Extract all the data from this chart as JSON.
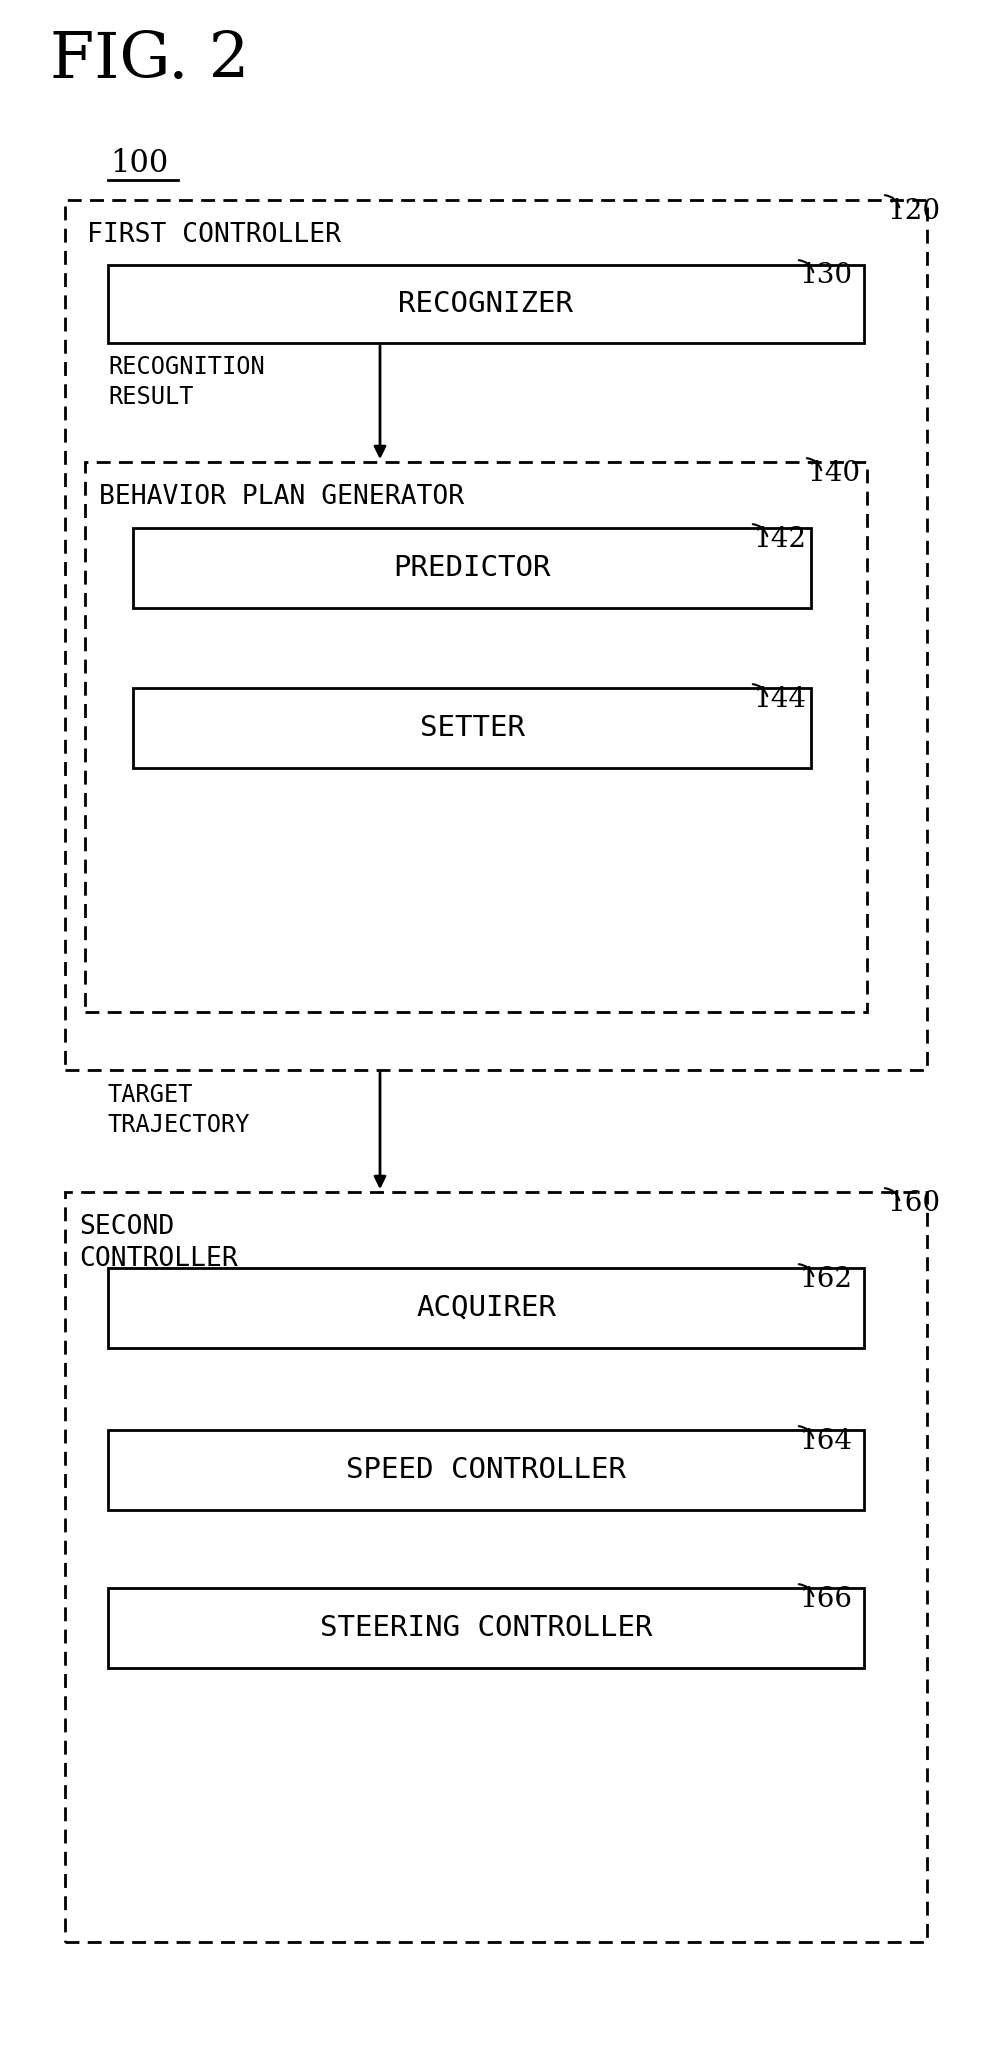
{
  "title": "FIG. 2",
  "label_100": "100",
  "label_120": "120",
  "label_130": "130",
  "label_140": "140",
  "label_142": "142",
  "label_144": "144",
  "label_160": "160",
  "label_162": "162",
  "label_164": "164",
  "label_166": "166",
  "text_first_controller": "FIRST CONTROLLER",
  "text_recognizer": "RECOGNIZER",
  "text_recognition_result": "RECOGNITION\nRESULT",
  "text_behavior_plan": "BEHAVIOR PLAN GENERATOR",
  "text_predictor": "PREDICTOR",
  "text_setter": "SETTER",
  "text_target_trajectory": "TARGET\nTRAJECTORY",
  "text_second_controller": "SECOND\nCONTROLLER",
  "text_acquirer": "ACQUIRER",
  "text_speed_controller": "SPEED CONTROLLER",
  "text_steering_controller": "STEERING CONTROLLER",
  "bg_color": "#ffffff",
  "text_color": "#000000"
}
